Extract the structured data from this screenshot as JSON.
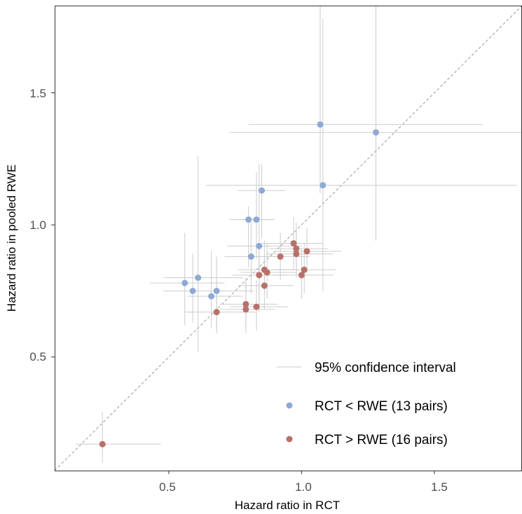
{
  "chart_data": {
    "type": "scatter",
    "xlabel": "Hazard ratio in RCT",
    "ylabel": "Hazard ratio in pooled RWE",
    "xlim": [
      0.07,
      1.83
    ],
    "ylim": [
      0.07,
      1.83
    ],
    "x_ticks": [
      0.5,
      1.0,
      1.5
    ],
    "y_ticks": [
      0.5,
      1.0,
      1.5
    ],
    "x_tick_labels": [
      "0.5",
      "1.0",
      "1.5"
    ],
    "y_tick_labels": [
      "0.5",
      "1.0",
      "1.5"
    ],
    "grid": false,
    "reference_line": "identity (y = x), dashed grey",
    "legend_position": "bottom-right",
    "legend": {
      "ci_label": "95% confidence interval",
      "entries": [
        "RCT <  RWE (13 pairs)",
        "RCT > RWE (16 pairs)"
      ]
    },
    "colors": {
      "rct_less": "#8fa9d6",
      "rct_greater": "#b87068",
      "ci_line": "#cccccc",
      "diagonal": "#999999",
      "axis": "#333333"
    },
    "series": [
      {
        "name": "RCT <  RWE (13 pairs)",
        "color": "#8fa9d6",
        "points": [
          {
            "x": 1.07,
            "y": 1.38,
            "x_lo": 0.8,
            "x_hi": 1.68,
            "y_lo": 1.12,
            "y_hi": 1.83
          },
          {
            "x": 1.28,
            "y": 1.35,
            "x_lo": 0.73,
            "x_hi": 1.83,
            "y_lo": 0.94,
            "y_hi": 1.83
          },
          {
            "x": 1.08,
            "y": 1.15,
            "x_lo": 0.64,
            "x_hi": 1.81,
            "y_lo": 0.75,
            "y_hi": 1.78
          },
          {
            "x": 0.85,
            "y": 1.13,
            "x_lo": 0.76,
            "x_hi": 0.94,
            "y_lo": 0.95,
            "y_hi": 1.23
          },
          {
            "x": 0.8,
            "y": 1.02,
            "x_lo": 0.73,
            "x_hi": 0.88,
            "y_lo": 0.84,
            "y_hi": 1.07
          },
          {
            "x": 0.83,
            "y": 1.02,
            "x_lo": 0.76,
            "x_hi": 0.9,
            "y_lo": 0.87,
            "y_hi": 1.2
          },
          {
            "x": 0.84,
            "y": 0.92,
            "x_lo": 0.72,
            "x_hi": 1.0,
            "y_lo": 0.67,
            "y_hi": 1.23
          },
          {
            "x": 0.81,
            "y": 0.88,
            "x_lo": 0.71,
            "x_hi": 0.93,
            "y_lo": 0.74,
            "y_hi": 1.01
          },
          {
            "x": 0.61,
            "y": 0.8,
            "x_lo": 0.48,
            "x_hi": 0.78,
            "y_lo": 0.52,
            "y_hi": 1.26
          },
          {
            "x": 0.56,
            "y": 0.78,
            "x_lo": 0.43,
            "x_hi": 0.71,
            "y_lo": 0.62,
            "y_hi": 0.97
          },
          {
            "x": 0.59,
            "y": 0.75,
            "x_lo": 0.48,
            "x_hi": 0.69,
            "y_lo": 0.63,
            "y_hi": 0.89
          },
          {
            "x": 0.68,
            "y": 0.75,
            "x_lo": 0.57,
            "x_hi": 0.82,
            "y_lo": 0.6,
            "y_hi": 0.88
          },
          {
            "x": 0.66,
            "y": 0.73,
            "x_lo": 0.57,
            "x_hi": 0.78,
            "y_lo": 0.61,
            "y_hi": 0.9
          }
        ]
      },
      {
        "name": "RCT > RWE (16 pairs)",
        "color": "#b87068",
        "points": [
          {
            "x": 0.97,
            "y": 0.93,
            "x_lo": 0.85,
            "x_hi": 1.08,
            "y_lo": 0.83,
            "y_hi": 1.03
          },
          {
            "x": 0.98,
            "y": 0.91,
            "x_lo": 0.88,
            "x_hi": 1.1,
            "y_lo": 0.81,
            "y_hi": 1.01
          },
          {
            "x": 0.98,
            "y": 0.89,
            "x_lo": 0.87,
            "x_hi": 1.12,
            "y_lo": 0.8,
            "y_hi": 0.98
          },
          {
            "x": 1.02,
            "y": 0.9,
            "x_lo": 0.9,
            "x_hi": 1.15,
            "y_lo": 0.82,
            "y_hi": 0.99
          },
          {
            "x": 0.92,
            "y": 0.88,
            "x_lo": 0.82,
            "x_hi": 1.03,
            "y_lo": 0.79,
            "y_hi": 0.97
          },
          {
            "x": 0.86,
            "y": 0.83,
            "x_lo": 0.76,
            "x_hi": 0.97,
            "y_lo": 0.74,
            "y_hi": 0.94
          },
          {
            "x": 0.87,
            "y": 0.82,
            "x_lo": 0.77,
            "x_hi": 0.98,
            "y_lo": 0.72,
            "y_hi": 0.93
          },
          {
            "x": 0.84,
            "y": 0.81,
            "x_lo": 0.74,
            "x_hi": 0.95,
            "y_lo": 0.71,
            "y_hi": 0.91
          },
          {
            "x": 1.01,
            "y": 0.83,
            "x_lo": 0.9,
            "x_hi": 1.13,
            "y_lo": 0.74,
            "y_hi": 0.93
          },
          {
            "x": 1.0,
            "y": 0.81,
            "x_lo": 0.89,
            "x_hi": 1.12,
            "y_lo": 0.72,
            "y_hi": 0.91
          },
          {
            "x": 0.86,
            "y": 0.77,
            "x_lo": 0.76,
            "x_hi": 0.97,
            "y_lo": 0.68,
            "y_hi": 0.87
          },
          {
            "x": 0.79,
            "y": 0.7,
            "x_lo": 0.69,
            "x_hi": 0.91,
            "y_lo": 0.61,
            "y_hi": 0.8
          },
          {
            "x": 0.79,
            "y": 0.68,
            "x_lo": 0.69,
            "x_hi": 0.9,
            "y_lo": 0.59,
            "y_hi": 0.78
          },
          {
            "x": 0.83,
            "y": 0.69,
            "x_lo": 0.73,
            "x_hi": 0.95,
            "y_lo": 0.6,
            "y_hi": 0.79
          },
          {
            "x": 0.68,
            "y": 0.67,
            "x_lo": 0.56,
            "x_hi": 0.83,
            "y_lo": 0.59,
            "y_hi": 0.76
          },
          {
            "x": 0.25,
            "y": 0.17,
            "x_lo": 0.15,
            "x_hi": 0.47,
            "y_lo": 0.1,
            "y_hi": 0.29
          }
        ]
      }
    ]
  }
}
